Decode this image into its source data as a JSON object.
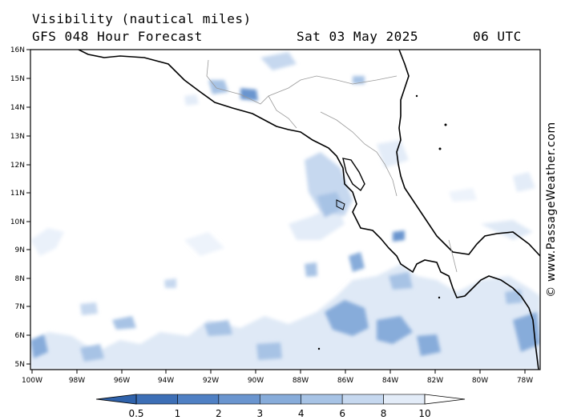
{
  "header": {
    "title": "Visibility (nautical miles)",
    "model": "GFS 048 Hour Forecast",
    "date": "Sat 03 May 2025",
    "time": "06 UTC"
  },
  "credit": "© www.PassageWeather.com",
  "map": {
    "lat_labels": [
      "16N",
      "15N",
      "14N",
      "13N",
      "12N",
      "11N",
      "10N",
      "9N",
      "8N",
      "7N",
      "6N",
      "5N"
    ],
    "lon_labels": [
      "100W",
      "98W",
      "96W",
      "94W",
      "92W",
      "90W",
      "88W",
      "86W",
      "84W",
      "82W",
      "80W",
      "78W"
    ]
  },
  "colorbar": {
    "labels": [
      "0.5",
      "1",
      "2",
      "3",
      "4",
      "6",
      "8",
      "10"
    ],
    "colors": [
      "#3d6fb6",
      "#4f80c4",
      "#6a95cf",
      "#87acda",
      "#a7c3e5",
      "#c6d8ef",
      "#e3ecf8"
    ]
  }
}
